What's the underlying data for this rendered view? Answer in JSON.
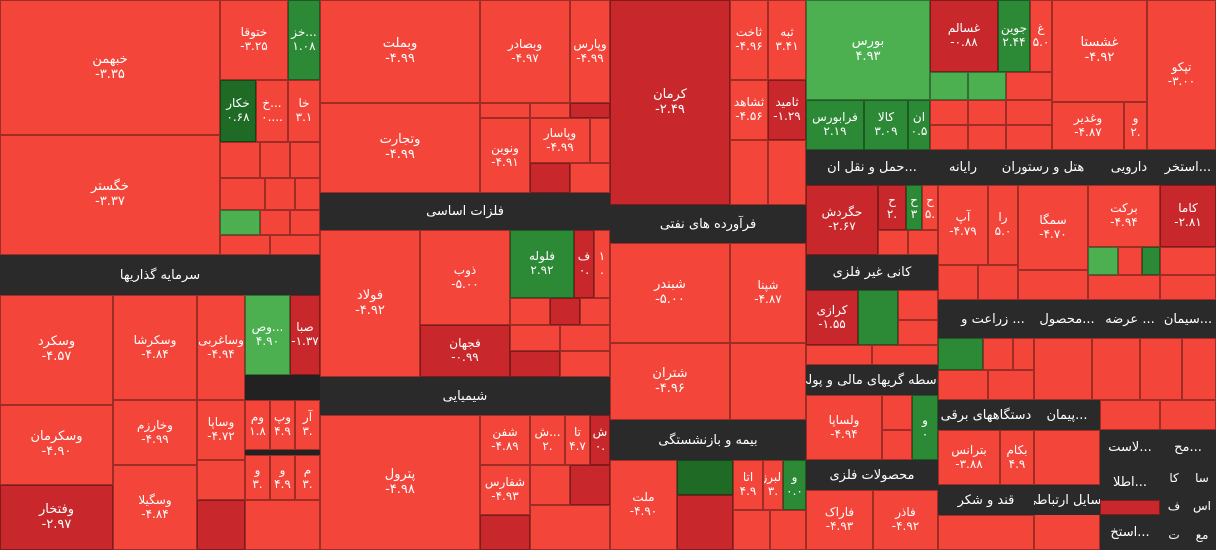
{
  "chart_data": {
    "type": "heatmap",
    "sectors": [
      "سرمایه گذاریها",
      "فلزات اساسی",
      "شیمیایی",
      "فرآورده های نفتی",
      "بیمه و بازنشستگی",
      "حمل و نقل ان...",
      "رایانه",
      "هتل و رستوران",
      "دارویی",
      "استخر...",
      "کانی غیر فلزی",
      "زراعت و ...",
      "محصول...",
      "عرضه ...",
      "سیمان...",
      "واسطه گریهای مالی و پولی",
      "دستگاههای برقی",
      "پیمان...",
      "لاست...",
      "مح...",
      "محصولات فلزی",
      "قند و شکر",
      "وسایل ارتباطی",
      "اطلا...",
      "استخ..."
    ],
    "tiles": [
      {
        "name": "خبهمن",
        "value": "-۳.۳۵",
        "tone": "red"
      },
      {
        "name": "خگستر",
        "value": "-۳.۳۷",
        "tone": "red"
      },
      {
        "name": "ختوقا",
        "value": "-۳.۲۵",
        "tone": "red"
      },
      {
        "name": "خز...",
        "value": "۱.۰۸",
        "tone": "green-dark"
      },
      {
        "name": "خکار",
        "value": "۰.۶۸",
        "tone": "green-deep"
      },
      {
        "name": "خ...",
        "value": "۰....",
        "tone": "red"
      },
      {
        "name": "خا",
        "value": "۳.۱",
        "tone": "red"
      },
      {
        "name": "وبملت",
        "value": "-۴.۹۹",
        "tone": "red"
      },
      {
        "name": "وتجارت",
        "value": "-۴.۹۹",
        "tone": "red"
      },
      {
        "name": "وبصادر",
        "value": "-۴.۹۷",
        "tone": "red"
      },
      {
        "name": "وپارس",
        "value": "-۴.۹۹",
        "tone": "red"
      },
      {
        "name": "ونوین",
        "value": "-۴.۹۱",
        "tone": "red"
      },
      {
        "name": "وپاسار",
        "value": "-۴.۹۹",
        "tone": "red"
      },
      {
        "name": "کرمان",
        "value": "-۲.۴۹",
        "tone": "red-dark"
      },
      {
        "name": "ثاخت",
        "value": "-۴.۹۶",
        "tone": "red"
      },
      {
        "name": "ثبه",
        "value": "۳.۴۱",
        "tone": "red"
      },
      {
        "name": "ثشاهد",
        "value": "-۴.۵۶",
        "tone": "red"
      },
      {
        "name": "ثامید",
        "value": "-۱.۲۹",
        "tone": "red-dark"
      },
      {
        "name": "بورس",
        "value": "۴.۹۳",
        "tone": "green"
      },
      {
        "name": "فرابورس",
        "value": "۲.۱۹",
        "tone": "green-dark"
      },
      {
        "name": "کالا",
        "value": "۳.۰۹",
        "tone": "green-dark"
      },
      {
        "name": "ان",
        "value": "۰.۵",
        "tone": "green-dark"
      },
      {
        "name": "غسالم",
        "value": "-۰.۸۸",
        "tone": "red-dark"
      },
      {
        "name": "جوین",
        "value": "۲.۴۴",
        "tone": "green-dark"
      },
      {
        "name": "غ",
        "value": "۵.۰",
        "tone": "red"
      },
      {
        "name": "غشستا",
        "value": "-۴.۹۲",
        "tone": "red"
      },
      {
        "name": "وغدیر",
        "value": "-۴.۸۷",
        "tone": "red"
      },
      {
        "name": "و",
        "value": "۲.",
        "tone": "red"
      },
      {
        "name": "تپکو",
        "value": "-۳.۰۰",
        "tone": "red"
      },
      {
        "name": "فولاد",
        "value": "-۴.۹۲",
        "tone": "red"
      },
      {
        "name": "ذوب",
        "value": "-۵.۰۰",
        "tone": "red"
      },
      {
        "name": "فلوله",
        "value": "۲.۹۲",
        "tone": "green-dark"
      },
      {
        "name": "ف",
        "value": "۰.",
        "tone": "red-dark"
      },
      {
        "name": "۱",
        "value": ".",
        "tone": "red"
      },
      {
        "name": "فجهان",
        "value": "-۰.۹۹",
        "tone": "red-dark"
      },
      {
        "name": "شبندر",
        "value": "-۵.۰۰",
        "tone": "red"
      },
      {
        "name": "شپنا",
        "value": "-۴.۸۷",
        "tone": "red"
      },
      {
        "name": "شتران",
        "value": "-۴.۹۶",
        "tone": "red"
      },
      {
        "name": "حگردش",
        "value": "-۲.۶۷",
        "tone": "red-dark"
      },
      {
        "name": "ح",
        "value": "۲.",
        "tone": "red-dark"
      },
      {
        "name": "ح",
        "value": "۳",
        "tone": "green-dark"
      },
      {
        "name": "ح",
        "value": "۵.",
        "tone": "red"
      },
      {
        "name": "آپ",
        "value": "-۴.۷۹",
        "tone": "red"
      },
      {
        "name": "را",
        "value": "۵.۰",
        "tone": "red"
      },
      {
        "name": "سمگا",
        "value": "-۴.۷۰",
        "tone": "red"
      },
      {
        "name": "برکت",
        "value": "-۴.۹۴",
        "tone": "red"
      },
      {
        "name": "کاما",
        "value": "-۲.۸۱",
        "tone": "red-dark"
      },
      {
        "name": "وسکرد",
        "value": "-۴.۵۷",
        "tone": "red"
      },
      {
        "name": "وسکرشا",
        "value": "-۴.۸۴",
        "tone": "red"
      },
      {
        "name": "وساغربی",
        "value": "-۴.۹۴",
        "tone": "red"
      },
      {
        "name": "وص...",
        "value": "۴.۹۰",
        "tone": "green"
      },
      {
        "name": "صبا",
        "value": "-۱.۳۷",
        "tone": "red-dark"
      },
      {
        "name": "وسکرمان",
        "value": "-۴.۹۰",
        "tone": "red"
      },
      {
        "name": "وخارزم",
        "value": "-۴.۹۹",
        "tone": "red"
      },
      {
        "name": "وساپا",
        "value": "-۴.۷۲",
        "tone": "red"
      },
      {
        "name": "وم",
        "value": "۱.۸",
        "tone": "red"
      },
      {
        "name": "وپ",
        "value": "۴.۹",
        "tone": "red"
      },
      {
        "name": "آر",
        "value": "۳.",
        "tone": "red"
      },
      {
        "name": "و",
        "value": "۳.",
        "tone": "red"
      },
      {
        "name": "و",
        "value": "۴.۹",
        "tone": "red"
      },
      {
        "name": "م",
        "value": "۳.",
        "tone": "red"
      },
      {
        "name": "وفتخار",
        "value": "-۲.۹۷",
        "tone": "red-dark"
      },
      {
        "name": "وسگیلا",
        "value": "-۴.۸۴",
        "tone": "red"
      },
      {
        "name": "پترول",
        "value": "-۴.۹۸",
        "tone": "red"
      },
      {
        "name": "شفن",
        "value": "-۴.۸۹",
        "tone": "red"
      },
      {
        "name": "ش...",
        "value": "۲.",
        "tone": "red"
      },
      {
        "name": "تا",
        "value": "۴.۷",
        "tone": "red"
      },
      {
        "name": "ش",
        "value": "۰.",
        "tone": "red-dark"
      },
      {
        "name": "شفارس",
        "value": "-۴.۹۳",
        "tone": "red"
      },
      {
        "name": "ملت",
        "value": "-۴.۹۰",
        "tone": "red"
      },
      {
        "name": "اتا",
        "value": "۴.۹",
        "tone": "red"
      },
      {
        "name": "البرز",
        "value": "۳.",
        "tone": "red"
      },
      {
        "name": "و",
        "value": "۰.۰",
        "tone": "green-dark"
      },
      {
        "name": "کرازی",
        "value": "-۱.۵۵",
        "tone": "red-dark"
      },
      {
        "name": "ولساپا",
        "value": "-۴.۹۴",
        "tone": "red"
      },
      {
        "name": "و",
        "value": "۰",
        "tone": "green-dark"
      },
      {
        "name": "فاراک",
        "value": "-۴.۹۳",
        "tone": "red"
      },
      {
        "name": "فاذر",
        "value": "-۴.۹۲",
        "tone": "red"
      },
      {
        "name": "بترانس",
        "value": "-۳.۸۸",
        "tone": "red"
      },
      {
        "name": "بکام",
        "value": "۴.۹",
        "tone": "red"
      },
      {
        "name": "کا",
        "value": "",
        "tone": "none"
      },
      {
        "name": "سا",
        "value": "",
        "tone": "none"
      },
      {
        "name": "ف",
        "value": "",
        "tone": "none"
      },
      {
        "name": "اس",
        "value": "",
        "tone": "none"
      },
      {
        "name": "ت",
        "value": "",
        "tone": "none"
      },
      {
        "name": "مع",
        "value": "",
        "tone": "none"
      }
    ],
    "colors": {
      "red": "#f4453a",
      "red-dark": "#c8282b",
      "red-deep": "#a51c22",
      "green": "#4cb050",
      "green-dark": "#2c8a36",
      "green-deep": "#1f6b26",
      "header": "#2a2a2a"
    }
  }
}
